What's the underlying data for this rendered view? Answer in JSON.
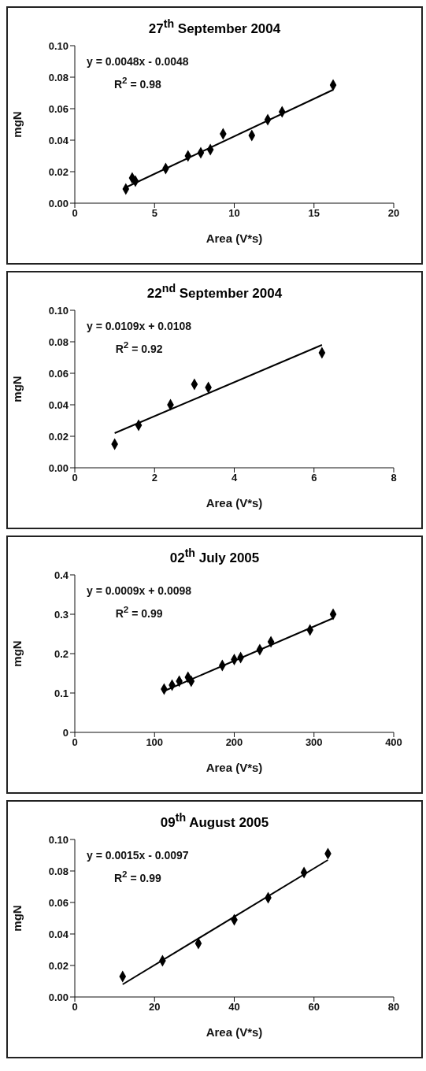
{
  "chart_data": [
    {
      "type": "scatter",
      "title": "27$^{th}$ September 2004",
      "xlabel": "Area (V*s)",
      "ylabel": "mgN",
      "xlim": [
        0,
        20
      ],
      "xticks": [
        0,
        5,
        10,
        15,
        20
      ],
      "ylim": [
        0,
        0.1
      ],
      "yticks": [
        {
          "value": 0,
          "label": "0.00"
        },
        {
          "value": 0.02,
          "label": "0.02"
        },
        {
          "value": 0.04,
          "label": "0.04"
        },
        {
          "value": 0.06,
          "label": "0.06"
        },
        {
          "value": 0.08,
          "label": "0.08"
        },
        {
          "value": 0.1,
          "label": "0.10"
        }
      ],
      "annotations": [
        "y = 0.0048x - 0.0048",
        "R$^{2}$ = 0.98"
      ],
      "series": [
        {
          "color": "#000000",
          "marker": "diamond",
          "x": [
            3.2,
            3.6,
            3.8,
            5.7,
            7.1,
            7.9,
            8.5,
            9.3,
            11.1,
            12.1,
            13.0,
            16.2
          ],
          "values": [
            0.009,
            0.016,
            0.014,
            0.022,
            0.03,
            0.032,
            0.034,
            0.044,
            0.043,
            0.053,
            0.058,
            0.075
          ]
        },
        {
          "type": "line",
          "color": "#000000",
          "marker": "none",
          "line_style": "solid",
          "x": [
            3.2,
            16.2
          ],
          "values": [
            0.01,
            0.072
          ]
        }
      ]
    },
    {
      "type": "scatter",
      "title": "22$^{nd}$ September 2004",
      "xlabel": "Area (V*s)",
      "ylabel": "mgN",
      "xlim": [
        0,
        8
      ],
      "xticks": [
        0,
        2,
        4,
        6,
        8
      ],
      "ylim": [
        0,
        0.1
      ],
      "yticks": [
        {
          "value": 0,
          "label": "0.00"
        },
        {
          "value": 0.02,
          "label": "0.02"
        },
        {
          "value": 0.04,
          "label": "0.04"
        },
        {
          "value": 0.06,
          "label": "0.06"
        },
        {
          "value": 0.08,
          "label": "0.08"
        },
        {
          "value": 0.1,
          "label": "0.10"
        }
      ],
      "annotations": [
        "y = 0.0109x + 0.0108",
        "R$^{2}$ = 0.92"
      ],
      "series": [
        {
          "color": "#000000",
          "marker": "diamond",
          "x": [
            1.0,
            1.6,
            2.4,
            3.0,
            3.35,
            6.2
          ],
          "values": [
            0.015,
            0.027,
            0.04,
            0.053,
            0.051,
            0.073
          ]
        },
        {
          "type": "line",
          "color": "#000000",
          "marker": "none",
          "line_style": "solid",
          "x": [
            1.0,
            6.2
          ],
          "values": [
            0.022,
            0.078
          ]
        }
      ]
    },
    {
      "type": "scatter",
      "title": "02$^{th}$ July 2005",
      "xlabel": "Area (V*s)",
      "ylabel": "mgN",
      "xlim": [
        0,
        400
      ],
      "xticks": [
        0,
        100,
        200,
        300,
        400
      ],
      "ylim": [
        0,
        0.4
      ],
      "yticks": [
        0,
        0.1,
        0.2,
        0.3,
        0.4
      ],
      "annotations": [
        "y = 0.0009x + 0.0098",
        "R$^{2}$ = 0.99"
      ],
      "series": [
        {
          "color": "#000000",
          "marker": "diamond",
          "x": [
            112,
            122,
            131,
            142,
            146,
            185,
            200,
            208,
            232,
            246,
            295,
            324
          ],
          "values": [
            0.11,
            0.12,
            0.13,
            0.14,
            0.13,
            0.17,
            0.185,
            0.19,
            0.21,
            0.23,
            0.26,
            0.3
          ]
        },
        {
          "type": "line",
          "color": "#000000",
          "marker": "none",
          "line_style": "solid",
          "x": [
            112,
            324
          ],
          "values": [
            0.105,
            0.29
          ]
        }
      ]
    },
    {
      "type": "scatter",
      "title": "09$^{th}$ August 2005",
      "xlabel": "Area (V*s)",
      "ylabel": "mgN",
      "xlim": [
        0,
        80
      ],
      "xticks": [
        0,
        20,
        40,
        60,
        80
      ],
      "ylim": [
        0,
        0.1
      ],
      "yticks": [
        {
          "value": 0,
          "label": "0.00"
        },
        {
          "value": 0.02,
          "label": "0.02"
        },
        {
          "value": 0.04,
          "label": "0.04"
        },
        {
          "value": 0.06,
          "label": "0.06"
        },
        {
          "value": 0.08,
          "label": "0.08"
        },
        {
          "value": 0.1,
          "label": "0.10"
        }
      ],
      "annotations": [
        "y = 0.0015x - 0.0097",
        "R$^{2}$ = 0.99"
      ],
      "series": [
        {
          "color": "#000000",
          "marker": "diamond",
          "x": [
            12,
            22,
            31,
            40,
            48.5,
            57.5,
            63.5
          ],
          "values": [
            0.013,
            0.023,
            0.034,
            0.049,
            0.063,
            0.079,
            0.091
          ]
        },
        {
          "type": "line",
          "color": "#000000",
          "marker": "none",
          "line_style": "solid",
          "x": [
            12,
            63.5
          ],
          "values": [
            0.008,
            0.087
          ]
        }
      ]
    }
  ]
}
